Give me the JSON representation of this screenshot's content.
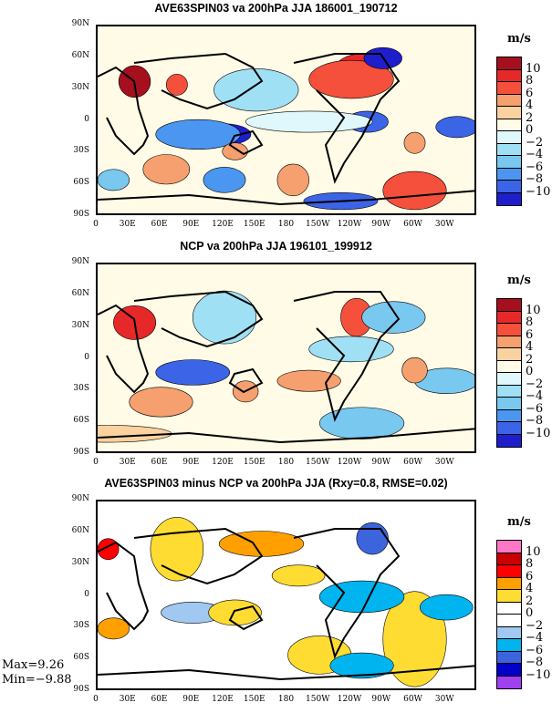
{
  "panels": [
    {
      "title": "AVE63SPIN03 va 200hPa JJA 186001_190712",
      "unit": "m/s"
    },
    {
      "title": "NCP va 200hPa JJA 196101_199912",
      "unit": "m/s"
    },
    {
      "title": "AVE63SPIN03 minus NCP va 200hPa JJA (Rxy=0.8, RMSE=0.02)",
      "unit": "m/s"
    }
  ],
  "x_ticks": [
    "0",
    "30E",
    "60E",
    "90E",
    "120E",
    "150E",
    "180",
    "150W",
    "120W",
    "90W",
    "60W",
    "30W"
  ],
  "y_ticks": [
    "90N",
    "60N",
    "30N",
    "0",
    "30S",
    "60S",
    "90S"
  ],
  "colorbar_labels": [
    "10",
    "8",
    "6",
    "4",
    "2",
    "0",
    "−2",
    "−4",
    "−6",
    "−8",
    "−10"
  ],
  "palette_main": [
    "#a50f1e",
    "#e62828",
    "#f5503c",
    "#f5a06e",
    "#fad2a0",
    "#fffbe6",
    "#e0f8fc",
    "#a0e0f5",
    "#78c8f0",
    "#4b96f0",
    "#3c64e6",
    "#1e1ecc"
  ],
  "palette_diff": [
    "#ff78c8",
    "#c80000",
    "#ff0000",
    "#ffa000",
    "#ffdc32",
    "#ffffff",
    "#ffffff",
    "#a0c8f0",
    "#00b4f0",
    "#3c64dc",
    "#0000c8",
    "#a040f0"
  ],
  "stats": {
    "max": "Max=9.26",
    "min": "Min=−9.88"
  }
}
